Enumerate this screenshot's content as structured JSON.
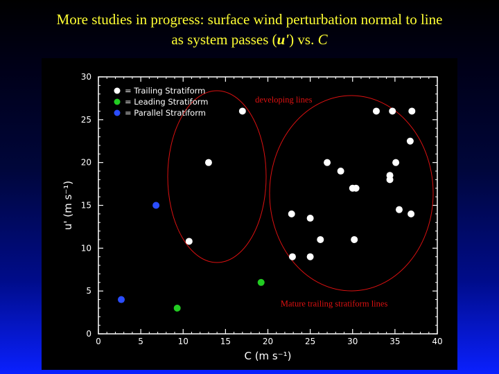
{
  "slide": {
    "title_line1": "More studies in progress:  surface wind perturbation normal to line",
    "title_line2_pre": "as system passes (",
    "title_line2_var": "u'",
    "title_line2_mid": ") vs. ",
    "title_line2_var2": "C"
  },
  "colors": {
    "title": "#ffff33",
    "trailing": "#ffffff",
    "leading": "#22cc22",
    "parallel": "#2a4dff",
    "annotation": "#dd1111"
  },
  "chart_data": {
    "type": "scatter",
    "xlabel": "C  (m  s⁻¹)",
    "ylabel": "u'  (m  s⁻¹)",
    "xlim": [
      0,
      40
    ],
    "ylim": [
      0,
      30
    ],
    "xticks": [
      0,
      5,
      10,
      15,
      20,
      25,
      30,
      35,
      40
    ],
    "yticks": [
      0,
      5,
      10,
      15,
      20,
      25,
      30
    ],
    "legend_position": "top-left",
    "series": [
      {
        "name": "=  Trailing  Stratiform",
        "color": "#ffffff",
        "points": [
          [
            10.7,
            10.8
          ],
          [
            13.0,
            20.0
          ],
          [
            17.0,
            26.0
          ],
          [
            22.8,
            14.0
          ],
          [
            22.9,
            9.0
          ],
          [
            25.0,
            9.0
          ],
          [
            25.0,
            13.5
          ],
          [
            26.2,
            11.0
          ],
          [
            27.0,
            20.0
          ],
          [
            28.6,
            19.0
          ],
          [
            30.0,
            17.0
          ],
          [
            30.4,
            17.0
          ],
          [
            30.2,
            11.0
          ],
          [
            32.8,
            26.0
          ],
          [
            34.4,
            18.0
          ],
          [
            34.4,
            18.5
          ],
          [
            34.7,
            26.0
          ],
          [
            35.1,
            20.0
          ],
          [
            35.5,
            14.5
          ],
          [
            36.8,
            22.5
          ],
          [
            37.0,
            26.0
          ],
          [
            36.9,
            14.0
          ]
        ]
      },
      {
        "name": "=  Leading  Stratiform",
        "color": "#22cc22",
        "points": [
          [
            9.3,
            3.0
          ],
          [
            19.2,
            6.0
          ]
        ]
      },
      {
        "name": "=  Parallel  Stratiform",
        "color": "#2a4dff",
        "points": [
          [
            2.7,
            4.0
          ],
          [
            6.8,
            15.0
          ]
        ]
      }
    ],
    "annotations": [
      {
        "text": "developing lines",
        "x": 18.5,
        "y": 27.0
      },
      {
        "text": "Mature trailing stratiform lines",
        "x": 21.5,
        "y": 3.2
      }
    ]
  }
}
